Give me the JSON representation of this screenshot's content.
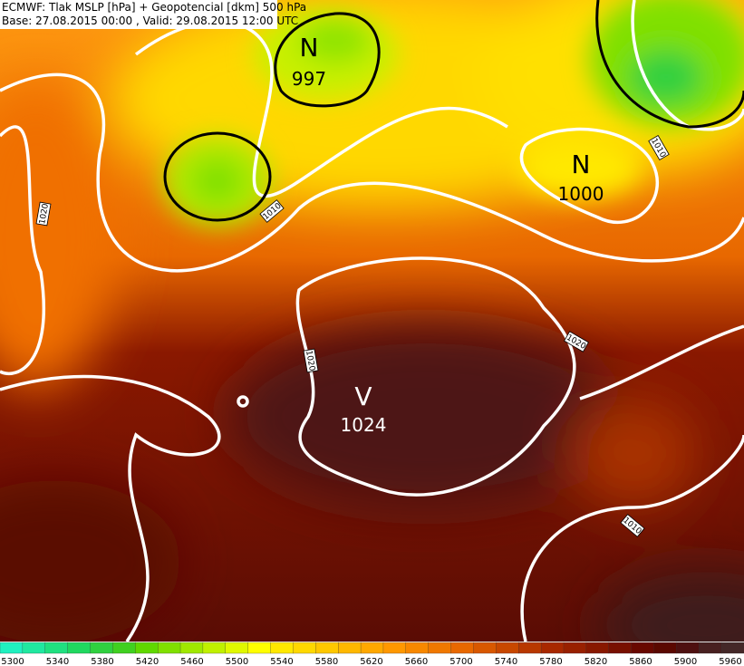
{
  "header": {
    "title": "ECMWF: Tlak MSLP [hPa] + Geopotencial [dkm] 500 hPa",
    "subtitle": "Base: 27.08.2015 00:00 , Valid: 29.08.2015 12:00 UTC"
  },
  "centers": [
    {
      "letter": "N",
      "value": "997"
    },
    {
      "letter": "N",
      "value": "1000"
    },
    {
      "letter": "V",
      "value": "1024"
    }
  ],
  "isobar_labels": [
    "1020",
    "1010",
    "1010",
    "1020",
    "1020",
    "1010"
  ],
  "colorbar": {
    "ticks": [
      "5300",
      "5340",
      "5380",
      "5420",
      "5460",
      "5500",
      "5540",
      "5580",
      "5620",
      "5660",
      "5700",
      "5740",
      "5780",
      "5820",
      "5860",
      "5900",
      "5960"
    ],
    "colors": [
      "#20f0c0",
      "#20e8a0",
      "#20e080",
      "#20d860",
      "#30d040",
      "#40d020",
      "#60d800",
      "#80e000",
      "#a0e800",
      "#c0f000",
      "#e0f800",
      "#ffff00",
      "#ffe800",
      "#ffd800",
      "#ffc800",
      "#ffb800",
      "#ffa800",
      "#ff9800",
      "#f88800",
      "#f07800",
      "#e86800",
      "#d85800",
      "#c84800",
      "#b83800",
      "#a82800",
      "#982000",
      "#881800",
      "#781000",
      "#680800",
      "#5a0800",
      "#4e1010",
      "#482020",
      "#442828"
    ]
  }
}
